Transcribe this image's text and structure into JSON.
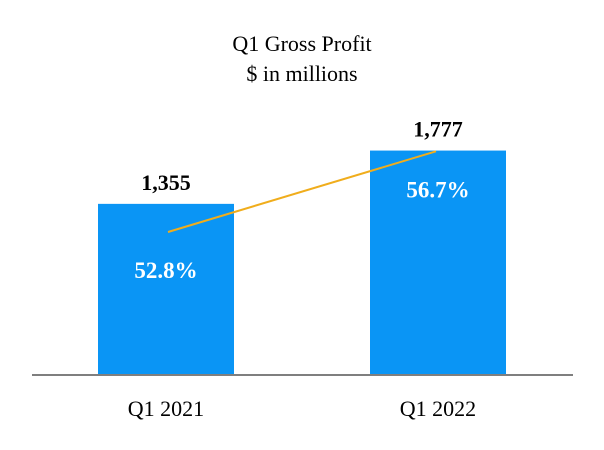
{
  "chart_data": {
    "type": "bar",
    "title": "Q1 Gross Profit",
    "subtitle": "$ in millions",
    "categories": [
      "Q1 2021",
      "Q1 2022"
    ],
    "series": [
      {
        "type": "bar",
        "values": [
          1355,
          1777
        ],
        "value_labels": [
          "1,355",
          "1,777"
        ],
        "color": "#0a95f5"
      },
      {
        "type": "line",
        "values": [
          52.8,
          56.7
        ],
        "value_labels": [
          "52.8%",
          "56.7%"
        ],
        "color": "#f0ad1c"
      }
    ],
    "ylim": [
      0,
      2000
    ],
    "grid": false,
    "legend": "none"
  }
}
